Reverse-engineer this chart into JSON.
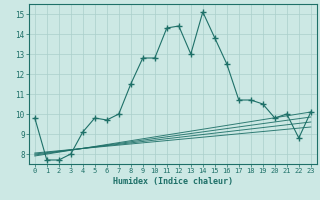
{
  "xlabel": "Humidex (Indice chaleur)",
  "bg_color": "#cce8e4",
  "grid_color": "#aacfcb",
  "line_color": "#1e7068",
  "xlim": [
    -0.5,
    23.5
  ],
  "ylim": [
    7.5,
    15.5
  ],
  "xticks": [
    0,
    1,
    2,
    3,
    4,
    5,
    6,
    7,
    8,
    9,
    10,
    11,
    12,
    13,
    14,
    15,
    16,
    17,
    18,
    19,
    20,
    21,
    22,
    23
  ],
  "yticks": [
    8,
    9,
    10,
    11,
    12,
    13,
    14,
    15
  ],
  "main_series": [
    [
      0,
      9.8
    ],
    [
      1,
      7.7
    ],
    [
      2,
      7.7
    ],
    [
      3,
      8.0
    ],
    [
      4,
      9.1
    ],
    [
      5,
      9.8
    ],
    [
      6,
      9.7
    ],
    [
      7,
      10.0
    ],
    [
      8,
      11.5
    ],
    [
      9,
      12.8
    ],
    [
      10,
      12.8
    ],
    [
      11,
      14.3
    ],
    [
      12,
      14.4
    ],
    [
      13,
      13.0
    ],
    [
      14,
      15.1
    ],
    [
      15,
      13.8
    ],
    [
      16,
      12.5
    ],
    [
      17,
      10.7
    ],
    [
      18,
      10.7
    ],
    [
      19,
      10.5
    ],
    [
      20,
      9.8
    ],
    [
      21,
      10.0
    ],
    [
      22,
      8.8
    ],
    [
      23,
      10.1
    ]
  ],
  "linear_series": [
    [
      [
        0,
        7.9
      ],
      [
        23,
        10.1
      ]
    ],
    [
      [
        0,
        7.95
      ],
      [
        23,
        9.85
      ]
    ],
    [
      [
        0,
        8.0
      ],
      [
        23,
        9.6
      ]
    ],
    [
      [
        0,
        8.05
      ],
      [
        23,
        9.35
      ]
    ]
  ]
}
